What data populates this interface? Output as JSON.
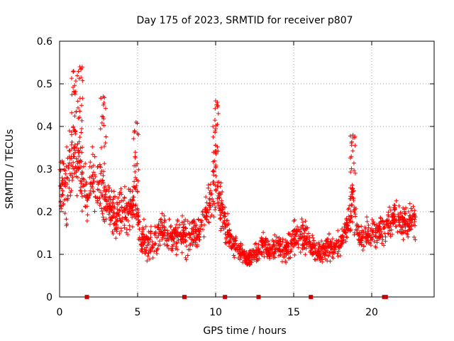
{
  "chart_data": {
    "type": "scatter",
    "title": "Day 175 of 2023, SRMTID for receiver p807",
    "xlabel": "GPS time / hours",
    "ylabel": "SRMTID / TECUs",
    "xlim": [
      0,
      24
    ],
    "ylim": [
      0,
      0.6
    ],
    "xticks": [
      0,
      5,
      10,
      15,
      20
    ],
    "xtick_labels": [
      "0",
      "5",
      "10",
      "15",
      "20"
    ],
    "yticks": [
      0,
      0.1,
      0.2,
      0.3,
      0.4,
      0.5,
      0.6
    ],
    "ytick_labels": [
      "0",
      "0.1",
      "0.2",
      "0.3",
      "0.4",
      "0.5",
      "0.6"
    ],
    "grid": true,
    "marker": "+",
    "color": "#ff0000",
    "zero_markers_x": [
      1.75,
      8.0,
      10.6,
      12.75,
      16.1,
      20.8,
      20.9
    ],
    "envelope": {
      "x": [
        0,
        0.5,
        1.0,
        1.3,
        1.6,
        2.0,
        2.5,
        3.0,
        3.5,
        4.0,
        4.5,
        4.9,
        5.2,
        5.6,
        6.0,
        6.5,
        7.0,
        7.5,
        8.0,
        8.5,
        9.0,
        9.4,
        9.7,
        10.0,
        10.3,
        10.6,
        11.0,
        11.5,
        12.0,
        12.5,
        13.0,
        13.5,
        14.0,
        14.5,
        15.0,
        15.5,
        16.0,
        16.5,
        17.0,
        17.5,
        18.0,
        18.5,
        18.8,
        19.2,
        19.6,
        20.0,
        20.5,
        21.0,
        21.5,
        22.0,
        22.5,
        22.8
      ],
      "center": [
        0.24,
        0.27,
        0.34,
        0.3,
        0.24,
        0.28,
        0.26,
        0.22,
        0.19,
        0.2,
        0.2,
        0.23,
        0.14,
        0.13,
        0.12,
        0.16,
        0.14,
        0.15,
        0.14,
        0.15,
        0.15,
        0.2,
        0.24,
        0.27,
        0.22,
        0.17,
        0.13,
        0.11,
        0.09,
        0.1,
        0.12,
        0.11,
        0.12,
        0.11,
        0.14,
        0.15,
        0.13,
        0.1,
        0.11,
        0.12,
        0.13,
        0.17,
        0.22,
        0.14,
        0.14,
        0.15,
        0.15,
        0.17,
        0.19,
        0.17,
        0.18,
        0.17
      ],
      "spread": [
        0.09,
        0.12,
        0.14,
        0.12,
        0.1,
        0.1,
        0.1,
        0.09,
        0.07,
        0.07,
        0.07,
        0.09,
        0.06,
        0.06,
        0.06,
        0.06,
        0.05,
        0.06,
        0.06,
        0.06,
        0.06,
        0.07,
        0.08,
        0.1,
        0.08,
        0.06,
        0.04,
        0.03,
        0.02,
        0.03,
        0.04,
        0.04,
        0.04,
        0.04,
        0.05,
        0.06,
        0.05,
        0.04,
        0.04,
        0.05,
        0.05,
        0.06,
        0.08,
        0.05,
        0.05,
        0.05,
        0.05,
        0.05,
        0.05,
        0.05,
        0.05,
        0.05
      ]
    },
    "peaks": [
      {
        "x": 0.9,
        "y": 0.53
      },
      {
        "x": 1.3,
        "y": 0.54
      },
      {
        "x": 2.8,
        "y": 0.47
      },
      {
        "x": 4.9,
        "y": 0.41
      },
      {
        "x": 10.0,
        "y": 0.46
      },
      {
        "x": 18.8,
        "y": 0.38
      }
    ]
  }
}
